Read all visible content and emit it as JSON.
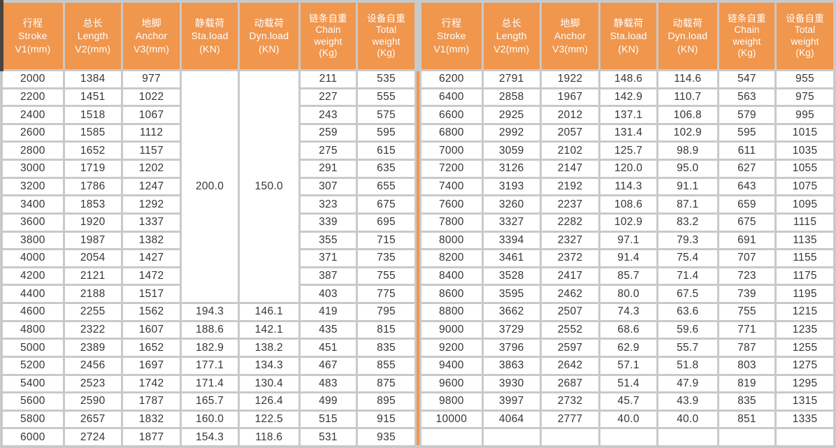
{
  "colors": {
    "header_bg": "#f0964d",
    "divider": "#f0964d",
    "grid_border": "#c9c9c9",
    "data_text": "#3a3433",
    "header_text": "#ffffff",
    "corner_artifact": "#4a4441"
  },
  "table": {
    "columns": [
      {
        "key": "stroke",
        "lines": [
          "行程",
          "Stroke",
          "V1(mm)"
        ]
      },
      {
        "key": "length",
        "lines": [
          "总长",
          "Length",
          "V2(mm)"
        ]
      },
      {
        "key": "anchor",
        "lines": [
          "地脚",
          "Anchor",
          "V3(mm)"
        ]
      },
      {
        "key": "static-load",
        "lines": [
          "静载荷",
          "Sta.load",
          "(KN)"
        ]
      },
      {
        "key": "dynamic-load",
        "lines": [
          "动载荷",
          "Dyn.load",
          "(KN)"
        ]
      },
      {
        "key": "chain-weight",
        "lines": [
          "链条自重",
          "Chain",
          "weight",
          "(Kg)"
        ]
      },
      {
        "key": "total-weight",
        "lines": [
          "设备自重",
          "Total",
          "weight",
          "(Kg)"
        ]
      }
    ],
    "left_merges": [
      {
        "col": 3,
        "start_row": 0,
        "span": 13,
        "value": "200.0"
      },
      {
        "col": 4,
        "start_row": 0,
        "span": 13,
        "value": "150.0"
      }
    ],
    "right_merges": [],
    "left_rows": [
      [
        "2000",
        "1384",
        "977",
        "",
        "",
        "211",
        "535"
      ],
      [
        "2200",
        "1451",
        "1022",
        "",
        "",
        "227",
        "555"
      ],
      [
        "2400",
        "1518",
        "1067",
        "",
        "",
        "243",
        "575"
      ],
      [
        "2600",
        "1585",
        "1112",
        "",
        "",
        "259",
        "595"
      ],
      [
        "2800",
        "1652",
        "1157",
        "",
        "",
        "275",
        "615"
      ],
      [
        "3000",
        "1719",
        "1202",
        "",
        "",
        "291",
        "635"
      ],
      [
        "3200",
        "1786",
        "1247",
        "",
        "",
        "307",
        "655"
      ],
      [
        "3400",
        "1853",
        "1292",
        "",
        "",
        "323",
        "675"
      ],
      [
        "3600",
        "1920",
        "1337",
        "",
        "",
        "339",
        "695"
      ],
      [
        "3800",
        "1987",
        "1382",
        "",
        "",
        "355",
        "715"
      ],
      [
        "4000",
        "2054",
        "1427",
        "",
        "",
        "371",
        "735"
      ],
      [
        "4200",
        "2121",
        "1472",
        "",
        "",
        "387",
        "755"
      ],
      [
        "4400",
        "2188",
        "1517",
        "",
        "",
        "403",
        "775"
      ],
      [
        "4600",
        "2255",
        "1562",
        "194.3",
        "146.1",
        "419",
        "795"
      ],
      [
        "4800",
        "2322",
        "1607",
        "188.6",
        "142.1",
        "435",
        "815"
      ],
      [
        "5000",
        "2389",
        "1652",
        "182.9",
        "138.2",
        "451",
        "835"
      ],
      [
        "5200",
        "2456",
        "1697",
        "177.1",
        "134.3",
        "467",
        "855"
      ],
      [
        "5400",
        "2523",
        "1742",
        "171.4",
        "130.4",
        "483",
        "875"
      ],
      [
        "5600",
        "2590",
        "1787",
        "165.7",
        "126.4",
        "499",
        "895"
      ],
      [
        "5800",
        "2657",
        "1832",
        "160.0",
        "122.5",
        "515",
        "915"
      ],
      [
        "6000",
        "2724",
        "1877",
        "154.3",
        "118.6",
        "531",
        "935"
      ]
    ],
    "right_rows": [
      [
        "6200",
        "2791",
        "1922",
        "148.6",
        "114.6",
        "547",
        "955"
      ],
      [
        "6400",
        "2858",
        "1967",
        "142.9",
        "110.7",
        "563",
        "975"
      ],
      [
        "6600",
        "2925",
        "2012",
        "137.1",
        "106.8",
        "579",
        "995"
      ],
      [
        "6800",
        "2992",
        "2057",
        "131.4",
        "102.9",
        "595",
        "1015"
      ],
      [
        "7000",
        "3059",
        "2102",
        "125.7",
        "98.9",
        "611",
        "1035"
      ],
      [
        "7200",
        "3126",
        "2147",
        "120.0",
        "95.0",
        "627",
        "1055"
      ],
      [
        "7400",
        "3193",
        "2192",
        "114.3",
        "91.1",
        "643",
        "1075"
      ],
      [
        "7600",
        "3260",
        "2237",
        "108.6",
        "87.1",
        "659",
        "1095"
      ],
      [
        "7800",
        "3327",
        "2282",
        "102.9",
        "83.2",
        "675",
        "1115"
      ],
      [
        "8000",
        "3394",
        "2327",
        "97.1",
        "79.3",
        "691",
        "1135"
      ],
      [
        "8200",
        "3461",
        "2372",
        "91.4",
        "75.4",
        "707",
        "1155"
      ],
      [
        "8400",
        "3528",
        "2417",
        "85.7",
        "71.4",
        "723",
        "1175"
      ],
      [
        "8600",
        "3595",
        "2462",
        "80.0",
        "67.5",
        "739",
        "1195"
      ],
      [
        "8800",
        "3662",
        "2507",
        "74.3",
        "63.6",
        "755",
        "1215"
      ],
      [
        "9000",
        "3729",
        "2552",
        "68.6",
        "59.6",
        "771",
        "1235"
      ],
      [
        "9200",
        "3796",
        "2597",
        "62.9",
        "55.7",
        "787",
        "1255"
      ],
      [
        "9400",
        "3863",
        "2642",
        "57.1",
        "51.8",
        "803",
        "1275"
      ],
      [
        "9600",
        "3930",
        "2687",
        "51.4",
        "47.9",
        "819",
        "1295"
      ],
      [
        "9800",
        "3997",
        "2732",
        "45.7",
        "43.9",
        "835",
        "1315"
      ],
      [
        "10000",
        "4064",
        "2777",
        "40.0",
        "40.0",
        "851",
        "1335"
      ],
      [
        "",
        "",
        "",
        "",
        "",
        "",
        ""
      ]
    ]
  }
}
